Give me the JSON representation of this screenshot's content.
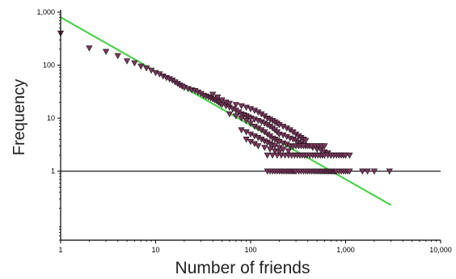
{
  "chart_data": {
    "type": "scatter",
    "title": "",
    "xlabel": "Number of friends",
    "ylabel": "Frequency",
    "x_scale": "log",
    "y_scale": "log",
    "xlim": [
      1,
      10000
    ],
    "ylim": [
      0.05,
      1000
    ],
    "grid": false,
    "legend": "none",
    "x_ticks": [
      {
        "value": 1,
        "label": "1"
      },
      {
        "value": 10,
        "label": "10"
      },
      {
        "value": 100,
        "label": "100"
      },
      {
        "value": 1000,
        "label": "1,000"
      },
      {
        "value": 10000,
        "label": "10,000"
      }
    ],
    "y_ticks": [
      {
        "value": 1,
        "label": "1"
      },
      {
        "value": 10,
        "label": "10"
      },
      {
        "value": 100,
        "label": "100"
      },
      {
        "value": 1000,
        "label": "1,000"
      }
    ],
    "reference_line": {
      "y": 1,
      "color": "#000000"
    },
    "fit_line": {
      "x": [
        1,
        3000
      ],
      "y": [
        800,
        0.23
      ],
      "color": "#4cd04c"
    },
    "marker": {
      "shape": "triangle-down",
      "fill": "#7a3a5c",
      "stroke": "#1a0a14"
    },
    "series": [
      {
        "points": [
          [
            1,
            400
          ],
          [
            2,
            210
          ],
          [
            3,
            180
          ],
          [
            4,
            150
          ],
          [
            5,
            120
          ],
          [
            6,
            110
          ],
          [
            7,
            95
          ],
          [
            8,
            88
          ],
          [
            9,
            80
          ],
          [
            10,
            72
          ],
          [
            11,
            68
          ],
          [
            12,
            62
          ],
          [
            13,
            58
          ],
          [
            14,
            55
          ],
          [
            15,
            52
          ],
          [
            16,
            48
          ],
          [
            17,
            45
          ],
          [
            18,
            42
          ],
          [
            19,
            40
          ],
          [
            20,
            38
          ],
          [
            22,
            36
          ],
          [
            24,
            34
          ],
          [
            26,
            33
          ],
          [
            28,
            31
          ],
          [
            30,
            29
          ],
          [
            32,
            27
          ],
          [
            34,
            26
          ],
          [
            36,
            25
          ],
          [
            38,
            24
          ],
          [
            40,
            23
          ],
          [
            42,
            22
          ],
          [
            44,
            21
          ],
          [
            46,
            20
          ],
          [
            48,
            19
          ],
          [
            50,
            18
          ],
          [
            55,
            17
          ],
          [
            60,
            16
          ],
          [
            65,
            15
          ],
          [
            70,
            14
          ],
          [
            75,
            13
          ],
          [
            80,
            12
          ],
          [
            85,
            11.5
          ],
          [
            90,
            11
          ],
          [
            95,
            10.5
          ],
          [
            100,
            10
          ],
          [
            110,
            9.5
          ],
          [
            120,
            9
          ],
          [
            130,
            8.5
          ],
          [
            140,
            8
          ],
          [
            150,
            7.5
          ],
          [
            160,
            7
          ],
          [
            170,
            6.5
          ],
          [
            180,
            6
          ],
          [
            190,
            5.5
          ],
          [
            200,
            5
          ],
          [
            220,
            4.8
          ],
          [
            240,
            4.5
          ],
          [
            260,
            4.2
          ],
          [
            280,
            4
          ],
          [
            300,
            3.8
          ],
          [
            320,
            3.5
          ],
          [
            340,
            3.3
          ],
          [
            360,
            3.1
          ],
          [
            380,
            3
          ],
          [
            400,
            3
          ],
          [
            450,
            2.8
          ],
          [
            500,
            2.6
          ],
          [
            550,
            2.5
          ],
          [
            600,
            2.3
          ],
          [
            650,
            2.2
          ],
          [
            700,
            2
          ],
          [
            40,
            28
          ],
          [
            45,
            25
          ],
          [
            50,
            22
          ],
          [
            55,
            20
          ],
          [
            60,
            19
          ],
          [
            70,
            18
          ],
          [
            80,
            17
          ],
          [
            90,
            16
          ],
          [
            100,
            15
          ],
          [
            110,
            14
          ],
          [
            120,
            13
          ],
          [
            130,
            12
          ],
          [
            140,
            11
          ],
          [
            150,
            10
          ],
          [
            160,
            9.5
          ],
          [
            170,
            9
          ],
          [
            180,
            8.5
          ],
          [
            190,
            8
          ],
          [
            200,
            7.5
          ],
          [
            220,
            7
          ],
          [
            240,
            6.5
          ],
          [
            260,
            6
          ],
          [
            280,
            5.5
          ],
          [
            300,
            5
          ],
          [
            320,
            4.6
          ],
          [
            340,
            4.3
          ],
          [
            360,
            4
          ],
          [
            380,
            3.8
          ],
          [
            60,
            12
          ],
          [
            70,
            11
          ],
          [
            80,
            10
          ],
          [
            90,
            9
          ],
          [
            100,
            8
          ],
          [
            110,
            7
          ],
          [
            120,
            6.5
          ],
          [
            130,
            6
          ],
          [
            140,
            5.5
          ],
          [
            150,
            5
          ],
          [
            160,
            4.6
          ],
          [
            170,
            4.2
          ],
          [
            180,
            4
          ],
          [
            190,
            3.8
          ],
          [
            200,
            3.6
          ],
          [
            220,
            3.4
          ],
          [
            240,
            3.2
          ],
          [
            260,
            3
          ],
          [
            280,
            2.9
          ],
          [
            80,
            6
          ],
          [
            90,
            5.5
          ],
          [
            100,
            5
          ],
          [
            110,
            4.6
          ],
          [
            120,
            4.3
          ],
          [
            130,
            4
          ],
          [
            140,
            3.7
          ],
          [
            150,
            3.5
          ],
          [
            160,
            3.3
          ],
          [
            170,
            3.1
          ],
          [
            180,
            3
          ],
          [
            200,
            2.8
          ],
          [
            220,
            2.6
          ],
          [
            250,
            2.4
          ],
          [
            90,
            4
          ],
          [
            100,
            3.6
          ],
          [
            110,
            3.3
          ],
          [
            120,
            3
          ],
          [
            140,
            2.8
          ],
          [
            160,
            2.6
          ],
          [
            180,
            2.4
          ],
          [
            200,
            2.3
          ],
          [
            150,
            2
          ],
          [
            170,
            2
          ],
          [
            190,
            2
          ],
          [
            210,
            2
          ],
          [
            230,
            2
          ],
          [
            250,
            2
          ],
          [
            270,
            2
          ],
          [
            290,
            2
          ],
          [
            310,
            2
          ],
          [
            330,
            2
          ],
          [
            350,
            2
          ],
          [
            370,
            2
          ],
          [
            390,
            2
          ],
          [
            420,
            2
          ],
          [
            450,
            2
          ],
          [
            480,
            2
          ],
          [
            510,
            2
          ],
          [
            540,
            2
          ],
          [
            570,
            2
          ],
          [
            600,
            2
          ],
          [
            650,
            2
          ],
          [
            700,
            2
          ],
          [
            750,
            2
          ],
          [
            800,
            2
          ],
          [
            850,
            2
          ],
          [
            900,
            2
          ],
          [
            950,
            2
          ],
          [
            1000,
            2
          ],
          [
            1100,
            2
          ],
          [
            300,
            3
          ],
          [
            320,
            3
          ],
          [
            340,
            3
          ],
          [
            360,
            3
          ],
          [
            420,
            3
          ],
          [
            440,
            3
          ],
          [
            480,
            3
          ],
          [
            520,
            3
          ],
          [
            560,
            3
          ],
          [
            600,
            3
          ],
          [
            150,
            1
          ],
          [
            160,
            1
          ],
          [
            170,
            1
          ],
          [
            180,
            1
          ],
          [
            190,
            1
          ],
          [
            200,
            1
          ],
          [
            210,
            1
          ],
          [
            220,
            1
          ],
          [
            230,
            1
          ],
          [
            240,
            1
          ],
          [
            250,
            1
          ],
          [
            260,
            1
          ],
          [
            270,
            1
          ],
          [
            280,
            1
          ],
          [
            290,
            1
          ],
          [
            300,
            1
          ],
          [
            320,
            1
          ],
          [
            340,
            1
          ],
          [
            360,
            1
          ],
          [
            380,
            1
          ],
          [
            400,
            1
          ],
          [
            420,
            1
          ],
          [
            440,
            1
          ],
          [
            460,
            1
          ],
          [
            480,
            1
          ],
          [
            500,
            1
          ],
          [
            520,
            1
          ],
          [
            540,
            1
          ],
          [
            560,
            1
          ],
          [
            580,
            1
          ],
          [
            600,
            1
          ],
          [
            620,
            1
          ],
          [
            640,
            1
          ],
          [
            660,
            1
          ],
          [
            680,
            1
          ],
          [
            700,
            1
          ],
          [
            720,
            1
          ],
          [
            740,
            1
          ],
          [
            760,
            1
          ],
          [
            780,
            1
          ],
          [
            800,
            1
          ],
          [
            850,
            1
          ],
          [
            900,
            1
          ],
          [
            950,
            1
          ],
          [
            1000,
            1
          ],
          [
            1050,
            1
          ],
          [
            1100,
            1
          ],
          [
            1500,
            1
          ],
          [
            1700,
            1
          ],
          [
            2000,
            1
          ],
          [
            2900,
            1
          ]
        ]
      }
    ]
  }
}
